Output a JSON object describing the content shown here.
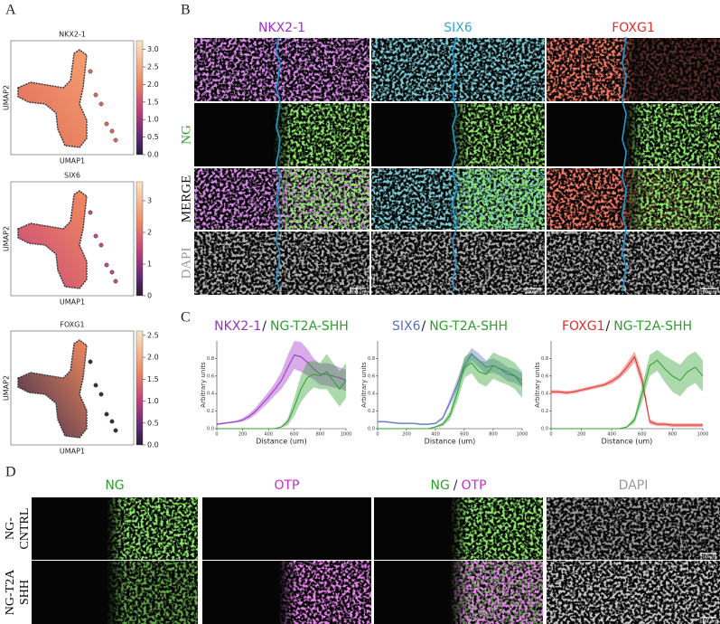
{
  "panel_labels": [
    "A",
    "B",
    "C",
    "D"
  ],
  "scale_bar": "100 µm",
  "umap": {
    "x_label": "UMAP1",
    "y_label": "UMAP2",
    "plots": [
      {
        "title": "NKX2-1",
        "colorbar_lim": [
          0,
          3.25
        ],
        "colorbar_ticks": [
          {
            "value": 0,
            "label": "0.0"
          },
          {
            "value": 0.5,
            "label": "0.5"
          },
          {
            "value": 1,
            "label": "1.0"
          },
          {
            "value": 1.5,
            "label": "1.5"
          },
          {
            "value": 2,
            "label": "2.0"
          },
          {
            "value": 2.5,
            "label": "2.5"
          },
          {
            "value": 3,
            "label": "3.0"
          }
        ]
      },
      {
        "title": "SIX6",
        "colorbar_lim": [
          0,
          3.6
        ],
        "colorbar_ticks": [
          0,
          1,
          2,
          3
        ]
      },
      {
        "title": "FOXG1",
        "colorbar_lim": [
          0,
          2.6
        ],
        "colorbar_ticks": [
          {
            "value": 0,
            "label": "0.0"
          },
          {
            "value": 0.5,
            "label": "0.5"
          },
          {
            "value": 1,
            "label": "1.0"
          },
          {
            "value": 1.5,
            "label": "1.5"
          },
          {
            "value": 2,
            "label": "2.0"
          },
          {
            "value": 2.5,
            "label": "2.5"
          }
        ]
      }
    ]
  },
  "panel_b": {
    "columns": [
      {
        "text": "NKX2-1",
        "color": "#9b30c8"
      },
      {
        "text": "SIX6",
        "color": "#3aa6cc"
      },
      {
        "text": "FOXG1",
        "color": "#e0302a"
      }
    ],
    "row_labels": [
      {
        "text": "NG",
        "color": "#2ca02c"
      },
      {
        "text": "MERGE",
        "color": "#111111"
      },
      {
        "text": "DAPI",
        "color": "#9a9a9a"
      }
    ]
  },
  "chart_data": [
    {
      "type": "line",
      "title_separator": "/",
      "x_label": "Distance (um)",
      "y_label": "Arbitrary units",
      "x": [
        0,
        50,
        100,
        150,
        200,
        250,
        300,
        350,
        400,
        450,
        500,
        550,
        600,
        650,
        700,
        750,
        800,
        850,
        900,
        950,
        1000
      ],
      "xlim": [
        0,
        1000
      ],
      "xticks": [
        0,
        200,
        400,
        600,
        800,
        1000
      ],
      "ylim": [
        0,
        1
      ],
      "yticks": [
        {
          "value": 0,
          "label": "0.0"
        },
        {
          "value": 0.2,
          "label": "0.2"
        },
        {
          "value": 0.4,
          "label": "0.4"
        },
        {
          "value": 0.6,
          "label": "0.6"
        },
        {
          "value": 0.8,
          "label": "0.8"
        }
      ],
      "series": [
        {
          "name": "NKX2-1",
          "color": "#9b30c8",
          "values": [
            0.05,
            0.06,
            0.07,
            0.08,
            0.1,
            0.14,
            0.2,
            0.28,
            0.36,
            0.45,
            0.55,
            0.7,
            0.84,
            0.82,
            0.76,
            0.68,
            0.62,
            0.62,
            0.6,
            0.58,
            0.55
          ],
          "errors": [
            0.01,
            0.01,
            0.01,
            0.01,
            0.02,
            0.03,
            0.04,
            0.05,
            0.06,
            0.07,
            0.1,
            0.14,
            0.16,
            0.17,
            0.15,
            0.12,
            0.12,
            0.13,
            0.13,
            0.12,
            0.12
          ]
        },
        {
          "name": "NG-T2A-SHH",
          "color": "#2ca02c",
          "values": [
            0,
            0,
            0,
            0,
            0,
            0,
            0,
            0,
            0,
            0,
            0.02,
            0.08,
            0.25,
            0.45,
            0.58,
            0.62,
            0.6,
            0.65,
            0.55,
            0.45,
            0.55
          ],
          "errors": [
            0,
            0,
            0,
            0,
            0,
            0,
            0,
            0,
            0,
            0,
            0.01,
            0.04,
            0.1,
            0.15,
            0.18,
            0.15,
            0.15,
            0.2,
            0.2,
            0.2,
            0.2
          ]
        }
      ]
    },
    {
      "type": "line",
      "title_separator": "/",
      "x_label": "Distance (um)",
      "y_label": "Arbitrary units",
      "x": [
        0,
        50,
        100,
        150,
        200,
        250,
        300,
        350,
        400,
        450,
        500,
        550,
        600,
        650,
        700,
        750,
        800,
        850,
        900,
        950,
        1000
      ],
      "xlim": [
        0,
        1000
      ],
      "xticks": [
        0,
        200,
        400,
        600,
        800,
        1000
      ],
      "ylim": [
        0,
        1
      ],
      "yticks": [
        {
          "value": 0,
          "label": "0.0"
        },
        {
          "value": 0.2,
          "label": "0.2"
        },
        {
          "value": 0.4,
          "label": "0.4"
        },
        {
          "value": 0.6,
          "label": "0.6"
        },
        {
          "value": 0.8,
          "label": "0.8"
        }
      ],
      "series": [
        {
          "name": "SIX6",
          "color": "#5b6fc0",
          "values": [
            0.08,
            0.08,
            0.07,
            0.06,
            0.06,
            0.06,
            0.05,
            0.05,
            0.06,
            0.12,
            0.3,
            0.5,
            0.72,
            0.85,
            0.78,
            0.7,
            0.72,
            0.68,
            0.62,
            0.6,
            0.55
          ],
          "errors": [
            0.01,
            0.01,
            0.01,
            0.01,
            0.01,
            0.01,
            0.01,
            0.01,
            0.01,
            0.02,
            0.04,
            0.06,
            0.07,
            0.07,
            0.08,
            0.08,
            0.08,
            0.08,
            0.08,
            0.08,
            0.08
          ]
        },
        {
          "name": "NG-T2A-SHH",
          "color": "#2ca02c",
          "values": [
            0,
            0,
            0,
            0,
            0,
            0,
            0,
            0,
            0.02,
            0.05,
            0.15,
            0.4,
            0.7,
            0.75,
            0.65,
            0.62,
            0.72,
            0.68,
            0.65,
            0.6,
            0.5
          ],
          "errors": [
            0,
            0,
            0,
            0,
            0,
            0,
            0,
            0,
            0.01,
            0.02,
            0.05,
            0.1,
            0.12,
            0.12,
            0.13,
            0.14,
            0.15,
            0.15,
            0.15,
            0.15,
            0.15
          ]
        }
      ]
    },
    {
      "type": "line",
      "title_separator": "/",
      "x_label": "Distance (um)",
      "y_label": "Arbitrary units",
      "x": [
        0,
        50,
        100,
        150,
        200,
        250,
        300,
        350,
        400,
        450,
        500,
        550,
        600,
        650,
        700,
        750,
        800,
        850,
        900,
        950,
        1000
      ],
      "xlim": [
        0,
        1000
      ],
      "xticks": [
        0,
        200,
        400,
        600,
        800,
        1000
      ],
      "ylim": [
        0,
        1
      ],
      "yticks": [
        {
          "value": 0,
          "label": "0.0"
        },
        {
          "value": 0.2,
          "label": "0.2"
        },
        {
          "value": 0.4,
          "label": "0.4"
        },
        {
          "value": 0.6,
          "label": "0.6"
        },
        {
          "value": 0.8,
          "label": "0.8"
        }
      ],
      "series": [
        {
          "name": "FOXG1",
          "color": "#e0302a",
          "values": [
            0.42,
            0.42,
            0.41,
            0.42,
            0.44,
            0.46,
            0.48,
            0.5,
            0.54,
            0.6,
            0.7,
            0.82,
            0.55,
            0.08,
            0.05,
            0.05,
            0.04,
            0.04,
            0.04,
            0.04,
            0.04
          ],
          "errors": [
            0.02,
            0.02,
            0.02,
            0.02,
            0.02,
            0.02,
            0.02,
            0.02,
            0.03,
            0.03,
            0.05,
            0.06,
            0.08,
            0.03,
            0.02,
            0.02,
            0.02,
            0.02,
            0.02,
            0.02,
            0.02
          ]
        },
        {
          "name": "NG-T2A-SHH",
          "color": "#2ca02c",
          "values": [
            0,
            0,
            0,
            0,
            0,
            0,
            0,
            0,
            0,
            0,
            0.02,
            0.1,
            0.4,
            0.72,
            0.78,
            0.68,
            0.6,
            0.55,
            0.65,
            0.7,
            0.6
          ],
          "errors": [
            0,
            0,
            0,
            0,
            0,
            0,
            0,
            0,
            0,
            0,
            0.01,
            0.04,
            0.1,
            0.12,
            0.12,
            0.15,
            0.18,
            0.18,
            0.18,
            0.18,
            0.18
          ]
        }
      ]
    }
  ],
  "panel_d": {
    "columns": [
      [
        {
          "text": "NG",
          "color": "#2ca02c"
        }
      ],
      [
        {
          "text": "OTP",
          "color": "#c030c8"
        }
      ],
      [
        {
          "text": "NG",
          "color": "#2ca02c"
        },
        {
          "text": "/",
          "color": "#333333"
        },
        {
          "text": "OTP",
          "color": "#c030c8"
        }
      ],
      [
        {
          "text": "DAPI",
          "color": "#9a9a9a"
        }
      ]
    ],
    "row_labels": [
      [
        "NG-",
        "CNTRL"
      ],
      [
        "NG-T2A",
        "SHH"
      ]
    ]
  }
}
